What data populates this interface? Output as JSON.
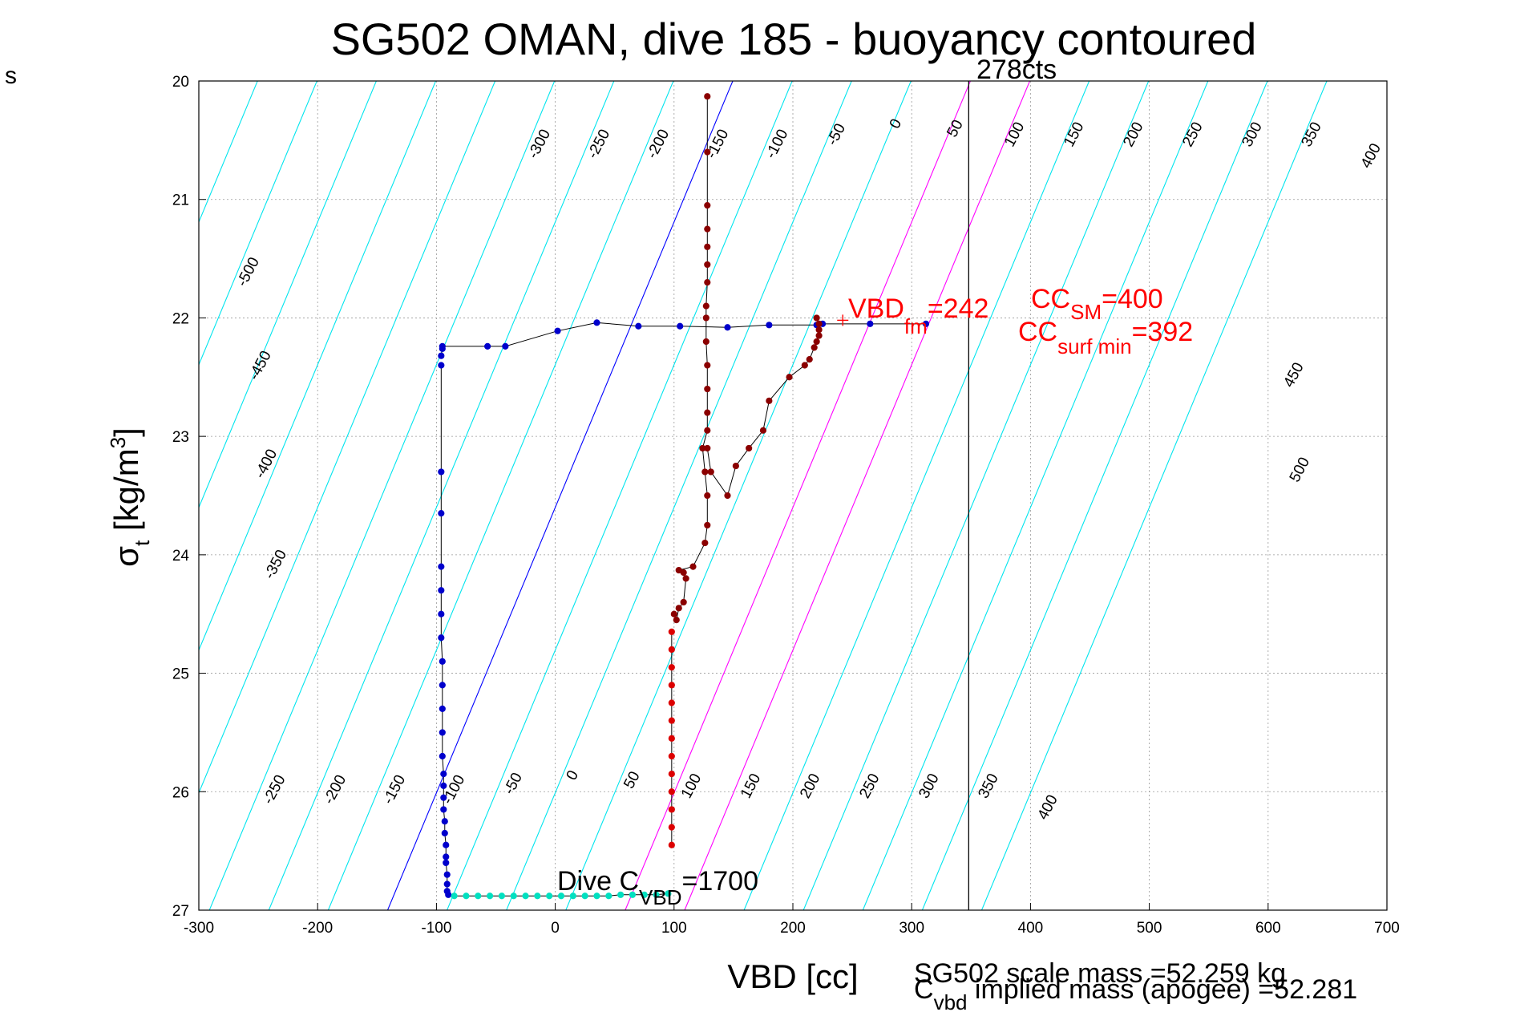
{
  "corner_label": "s",
  "chart_data": {
    "type": "scatter",
    "title": "SG502 OMAN, dive 185 - buoyancy contoured",
    "xlabel": "VBD [cc]",
    "ylabel": {
      "main": "σ",
      "sub": "t",
      "unit": " [kg/m",
      "sup": "3",
      "close": "]"
    },
    "xlim": [
      -300,
      700
    ],
    "ylim": [
      20,
      27
    ],
    "y_reversed": true,
    "grid": true,
    "x_ticks": [
      -300,
      -200,
      -100,
      0,
      100,
      200,
      300,
      400,
      500,
      600,
      700
    ],
    "y_ticks": [
      20,
      21,
      22,
      23,
      24,
      25,
      26,
      27
    ],
    "contours": {
      "levels": [
        -500,
        -450,
        -400,
        -350,
        -300,
        -250,
        -200,
        -150,
        -100,
        -50,
        0,
        50,
        100,
        150,
        200,
        250,
        300,
        350,
        400,
        450,
        500
      ],
      "color": "#00e5ee",
      "zero_color": "#0000ff",
      "surface_colors": {
        "200": "#ff00ff",
        "250": "#ff00ff"
      },
      "upper_labels": [
        {
          "text": "-500",
          "x": -255,
          "y": 21.63
        },
        {
          "text": "-450",
          "x": -245,
          "y": 22.42
        },
        {
          "text": "-400",
          "x": -240,
          "y": 23.25
        },
        {
          "text": "-350",
          "x": -232,
          "y": 24.1
        },
        {
          "text": "-300",
          "x": -10,
          "y": 20.55
        },
        {
          "text": "-250",
          "x": 40,
          "y": 20.55
        },
        {
          "text": "-200",
          "x": 90,
          "y": 20.55
        },
        {
          "text": "-150",
          "x": 140,
          "y": 20.55
        },
        {
          "text": "-100",
          "x": 190,
          "y": 20.55
        },
        {
          "text": "-50",
          "x": 240,
          "y": 20.47
        },
        {
          "text": "0",
          "x": 290,
          "y": 20.38
        },
        {
          "text": "50",
          "x": 340,
          "y": 20.42
        },
        {
          "text": "100",
          "x": 390,
          "y": 20.47
        },
        {
          "text": "150",
          "x": 440,
          "y": 20.47
        },
        {
          "text": "200",
          "x": 490,
          "y": 20.47
        },
        {
          "text": "250",
          "x": 540,
          "y": 20.47
        },
        {
          "text": "300",
          "x": 590,
          "y": 20.47
        },
        {
          "text": "350",
          "x": 640,
          "y": 20.47
        },
        {
          "text": "400",
          "x": 690,
          "y": 20.65
        },
        {
          "text": "450",
          "x": 625,
          "y": 22.5
        },
        {
          "text": "500",
          "x": 630,
          "y": 23.3
        }
      ],
      "lower_labels": [
        {
          "text": "-250",
          "x": -233,
          "y": 26.0
        },
        {
          "text": "-200",
          "x": -182,
          "y": 26.0
        },
        {
          "text": "-150",
          "x": -132,
          "y": 26.0
        },
        {
          "text": "-100",
          "x": -82,
          "y": 26.0
        },
        {
          "text": "-50",
          "x": -32,
          "y": 25.95
        },
        {
          "text": "0",
          "x": 18,
          "y": 25.88
        },
        {
          "text": "50",
          "x": 68,
          "y": 25.92
        },
        {
          "text": "100",
          "x": 118,
          "y": 25.97
        },
        {
          "text": "150",
          "x": 168,
          "y": 25.97
        },
        {
          "text": "200",
          "x": 218,
          "y": 25.97
        },
        {
          "text": "250",
          "x": 268,
          "y": 25.97
        },
        {
          "text": "300",
          "x": 318,
          "y": 25.97
        },
        {
          "text": "350",
          "x": 368,
          "y": 25.97
        },
        {
          "text": "400",
          "x": 418,
          "y": 26.15
        }
      ]
    },
    "vline": {
      "x": 348,
      "label": "278cts",
      "color": "#000000"
    },
    "annotations": {
      "vbd": {
        "main": "VBD",
        "sub": "fm",
        "rest": "=242",
        "marker_x": 242,
        "marker_y": 22.02
      },
      "ccsm": {
        "main": "CC",
        "sub": "SM",
        "rest": "=400"
      },
      "ccsurf": {
        "main": "CC",
        "sub": "surf min",
        "rest": "=392"
      },
      "dive": {
        "main": "Dive C",
        "sub": "VBD",
        "rest": "=1700"
      }
    },
    "footer": {
      "line1": "SG502 scale mass =52.259 kg",
      "line2_main": "C",
      "line2_sub": "vbd",
      "line2_rest": " implied mass (apogee) =52.281"
    },
    "series": [
      {
        "name": "",
        "color": "#0000cc",
        "x": [
          312,
          265,
          225,
          220,
          180,
          145,
          105,
          70,
          35,
          2,
          -42,
          -57,
          -95,
          -95,
          -96
        ],
        "y": [
          22.05,
          22.05,
          22.05,
          22.06,
          22.06,
          22.08,
          22.07,
          22.07,
          22.04,
          22.11,
          22.24,
          22.24,
          22.24,
          22.26,
          22.32
        ]
      },
      {
        "name": "",
        "color": "#0000cc",
        "x": [
          -96,
          -96,
          -96,
          -96,
          -96,
          -96,
          -96,
          -95,
          -95,
          -95,
          -95,
          -95,
          -94,
          -94,
          -94,
          -94,
          -93,
          -93,
          -92,
          -92,
          -92,
          -91,
          -91,
          -91,
          -90
        ],
        "y": [
          22.4,
          23.3,
          23.65,
          24.1,
          24.3,
          24.5,
          24.7,
          24.9,
          25.1,
          25.3,
          25.5,
          25.7,
          25.85,
          25.95,
          26.05,
          26.15,
          26.25,
          26.35,
          26.45,
          26.55,
          26.6,
          26.7,
          26.78,
          26.84,
          26.87
        ]
      },
      {
        "name": "",
        "color": "#00e0c0",
        "x": [
          -85,
          -75,
          -65,
          -55,
          -45,
          -35,
          -25,
          -15,
          -5,
          5,
          15,
          25,
          35,
          45,
          55,
          65,
          75,
          85,
          95
        ],
        "y": [
          26.88,
          26.88,
          26.88,
          26.88,
          26.88,
          26.88,
          26.88,
          26.88,
          26.88,
          26.88,
          26.88,
          26.88,
          26.88,
          26.88,
          26.87,
          26.87,
          26.87,
          26.87,
          26.86
        ]
      },
      {
        "name": "",
        "color": "#dd0000",
        "x": [
          98,
          98,
          98,
          98,
          98,
          98,
          98,
          98,
          98,
          98,
          98,
          98,
          98
        ],
        "y": [
          24.65,
          24.8,
          24.95,
          25.1,
          25.25,
          25.4,
          25.55,
          25.7,
          25.85,
          26.0,
          26.15,
          26.3,
          26.45
        ]
      },
      {
        "name": "",
        "color": "#8b0000",
        "x": [
          100,
          102,
          104,
          108,
          110,
          108,
          104,
          116,
          126,
          128,
          128,
          126,
          124,
          128,
          128,
          128,
          128,
          127,
          127,
          127,
          128,
          128,
          128,
          128,
          128,
          128,
          128
        ],
        "y": [
          24.5,
          24.55,
          24.45,
          24.4,
          24.2,
          24.15,
          24.13,
          24.1,
          23.9,
          23.75,
          23.5,
          23.3,
          23.1,
          22.95,
          22.8,
          22.6,
          22.4,
          22.2,
          22.0,
          21.9,
          21.7,
          21.55,
          21.4,
          21.25,
          21.05,
          20.6,
          20.13
        ]
      },
      {
        "name": "",
        "color": "#8b0000",
        "x": [
          128,
          131,
          145,
          152,
          163,
          175,
          180,
          197,
          210,
          214,
          218,
          220,
          222,
          222,
          222,
          220
        ],
        "y": [
          23.1,
          23.3,
          23.5,
          23.25,
          23.1,
          22.95,
          22.7,
          22.5,
          22.4,
          22.35,
          22.25,
          22.2,
          22.15,
          22.1,
          22.05,
          22.0
        ]
      }
    ]
  }
}
